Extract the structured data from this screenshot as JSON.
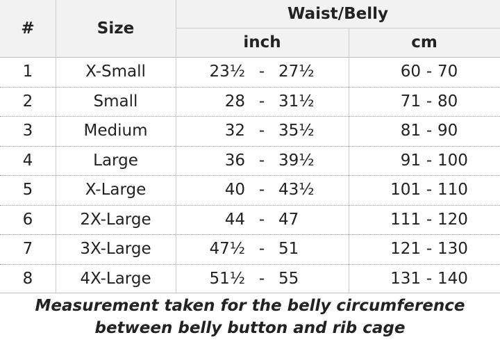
{
  "header": {
    "number": "#",
    "size": "Size",
    "group": "Waist/Belly",
    "inch": "inch",
    "cm": "cm"
  },
  "range_separator": "-",
  "table": {
    "rows": [
      {
        "number": "1",
        "size": "X-Small",
        "inch": [
          "23½",
          "27½"
        ],
        "cm": [
          "60",
          "70"
        ]
      },
      {
        "number": "2",
        "size": "Small",
        "inch": [
          "28",
          "31½"
        ],
        "cm": [
          "71",
          "80"
        ]
      },
      {
        "number": "3",
        "size": "Medium",
        "inch": [
          "32",
          "35½"
        ],
        "cm": [
          "81",
          "90"
        ]
      },
      {
        "number": "4",
        "size": "Large",
        "inch": [
          "36",
          "39½"
        ],
        "cm": [
          "91",
          "100"
        ]
      },
      {
        "number": "5",
        "size": "X-Large",
        "inch": [
          "40",
          "43½"
        ],
        "cm": [
          "101",
          "110"
        ]
      },
      {
        "number": "6",
        "size": "2X-Large",
        "inch": [
          "44",
          "47"
        ],
        "cm": [
          "111",
          "120"
        ]
      },
      {
        "number": "7",
        "size": "3X-Large",
        "inch": [
          "47½",
          "51"
        ],
        "cm": [
          "121",
          "130"
        ]
      },
      {
        "number": "8",
        "size": "4X-Large",
        "inch": [
          "51½",
          "55"
        ],
        "cm": [
          "131",
          "140"
        ]
      }
    ]
  },
  "footer": {
    "lines": [
      "Measurement taken for the belly circumference",
      "between belly button and rib cage"
    ]
  }
}
